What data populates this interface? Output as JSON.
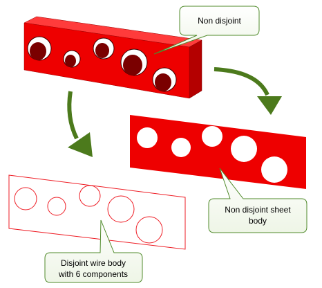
{
  "callouts": {
    "solid": "Non disjoint",
    "sheet_line1": "Non disjoint sheet",
    "sheet_line2": "body",
    "wire_line1": "Disjoint wire body",
    "wire_line2": "with 6 components"
  },
  "colors": {
    "solid_front": "#ee0000",
    "solid_top": "#ff3b3b",
    "solid_side": "#b40000",
    "hole_inner": "#7a0000",
    "sheet_fill": "#ee0000",
    "wire_stroke": "#ee1c24",
    "arrow_green": "#4c7a1c",
    "callout_border": "#4f8a2a",
    "callout_fill": "#ffffff"
  },
  "icons": {
    "arrow_to_sheet": "curved-arrow-down-right",
    "arrow_to_wire": "curved-arrow-down"
  }
}
